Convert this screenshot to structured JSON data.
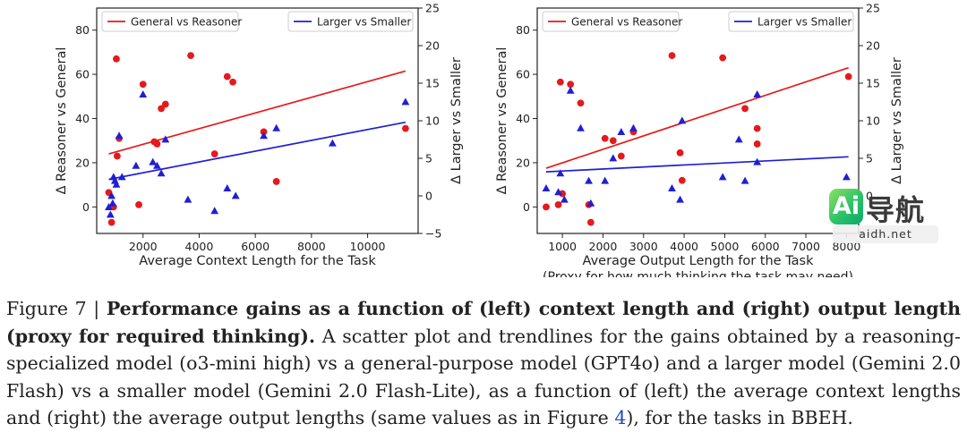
{
  "figure": {
    "label": "Figure 7 |",
    "title": "Performance gains as a function of (left) context length and (right) output length (proxy for required thinking).",
    "body_before_ref": " A scatter plot and trendlines for the gains obtained by a reasoning-specialized model (o3-mini high) vs a general-purpose model (GPT4o) and a larger model (Gemini 2.0 Flash) vs a smaller model (Gemini 2.0 Flash-Lite), as a function of (left) the average context lengths and (right) the average output lengths (same values as in Figure ",
    "ref": "4",
    "body_after_ref": "), for the tasks in BBEH."
  },
  "watermark": {
    "logo": "Ai",
    "name": "导航",
    "domain": "aidh.net"
  },
  "colors": {
    "red": "#e41a1c",
    "blue": "#1f1fd6",
    "axis": "#222222"
  },
  "chart_data": [
    {
      "type": "scatter",
      "title": "",
      "xlabel": "Average Context Length for the Task",
      "ylabel": "Δ Reasoner vs General",
      "y2label": "Δ Larger vs Smaller",
      "xlim": [
        350,
        11800
      ],
      "ylim": [
        -12,
        90
      ],
      "y2lim": [
        -5,
        25
      ],
      "xticks": [
        2000,
        4000,
        6000,
        8000,
        10000
      ],
      "yticks": [
        0,
        20,
        40,
        60,
        80
      ],
      "y2ticks": [
        -5,
        0,
        5,
        10,
        15,
        20,
        25
      ],
      "legend": {
        "red": "General vs Reasoner",
        "blue": "Larger vs Smaller",
        "red_position": "top-left",
        "blue_position": "top-right"
      },
      "series": [
        {
          "name": "General vs Reasoner",
          "axis": "left",
          "marker": "circle",
          "color": "red",
          "points": [
            [
              780,
              6.5
            ],
            [
              880,
              -7
            ],
            [
              950,
              0
            ],
            [
              1050,
              67
            ],
            [
              1080,
              23
            ],
            [
              1150,
              31
            ],
            [
              1850,
              1
            ],
            [
              2000,
              55.5
            ],
            [
              2400,
              29.5
            ],
            [
              2500,
              28.5
            ],
            [
              2650,
              44.5
            ],
            [
              2800,
              46.5
            ],
            [
              3700,
              68.5
            ],
            [
              4550,
              24
            ],
            [
              5000,
              59
            ],
            [
              5200,
              56.5
            ],
            [
              6300,
              34
            ],
            [
              6750,
              11.5
            ],
            [
              11350,
              35.5
            ]
          ],
          "trendline": [
            [
              780,
              24
            ],
            [
              11350,
              61.5
            ]
          ]
        },
        {
          "name": "Larger vs Smaller",
          "axis": "right",
          "marker": "triangle",
          "color": "blue",
          "points": [
            [
              780,
              -1.5
            ],
            [
              840,
              -2.5
            ],
            [
              880,
              0
            ],
            [
              920,
              -1
            ],
            [
              950,
              2.5
            ],
            [
              1000,
              2
            ],
            [
              1050,
              1.5
            ],
            [
              1150,
              8
            ],
            [
              1250,
              2.5
            ],
            [
              1750,
              4
            ],
            [
              2000,
              13.5
            ],
            [
              2350,
              4.5
            ],
            [
              2500,
              4
            ],
            [
              2650,
              3
            ],
            [
              2800,
              7.5
            ],
            [
              3600,
              -0.5
            ],
            [
              4550,
              -2
            ],
            [
              5000,
              1
            ],
            [
              5300,
              0
            ],
            [
              6300,
              8
            ],
            [
              6750,
              9
            ],
            [
              8750,
              7
            ],
            [
              11350,
              12.5
            ]
          ],
          "trendline": [
            [
              780,
              2.2
            ],
            [
              11350,
              9.8
            ]
          ]
        }
      ]
    },
    {
      "type": "scatter",
      "title": "",
      "xlabel": "Average Output Length for the Task",
      "xlabel2": "(Proxy for how much thinking the task may need)",
      "ylabel": "Δ Reasoner vs General",
      "y2label": "Δ Larger vs Smaller",
      "xlim": [
        380,
        8300
      ],
      "ylim": [
        -12,
        90
      ],
      "y2lim": [
        -5,
        25
      ],
      "xticks": [
        1000,
        2000,
        3000,
        4000,
        5000,
        6000,
        7000,
        8000
      ],
      "yticks": [
        0,
        20,
        40,
        60,
        80
      ],
      "y2ticks": [
        -5,
        0,
        5,
        10,
        15,
        20,
        25
      ],
      "legend": {
        "red": "General vs Reasoner",
        "blue": "Larger vs Smaller",
        "red_position": "top-left",
        "blue_position": "top-right"
      },
      "series": [
        {
          "name": "General vs Reasoner",
          "axis": "left",
          "marker": "circle",
          "color": "red",
          "points": [
            [
              600,
              0
            ],
            [
              900,
              1
            ],
            [
              950,
              56.5
            ],
            [
              1000,
              6
            ],
            [
              1200,
              55.5
            ],
            [
              1450,
              47
            ],
            [
              1650,
              1
            ],
            [
              1700,
              -7
            ],
            [
              2050,
              31
            ],
            [
              2250,
              30
            ],
            [
              2450,
              23
            ],
            [
              2750,
              34
            ],
            [
              3700,
              68.5
            ],
            [
              3900,
              24.5
            ],
            [
              3950,
              12
            ],
            [
              4950,
              67.5
            ],
            [
              5500,
              44.5
            ],
            [
              5800,
              35.5
            ],
            [
              5800,
              28.5
            ],
            [
              8050,
              59
            ]
          ],
          "trendline": [
            [
              600,
              17.5
            ],
            [
              8050,
              63
            ]
          ]
        },
        {
          "name": "Larger vs Smaller",
          "axis": "right",
          "marker": "triangle",
          "color": "blue",
          "points": [
            [
              600,
              1
            ],
            [
              900,
              0.5
            ],
            [
              950,
              3
            ],
            [
              1050,
              -0.5
            ],
            [
              1200,
              14
            ],
            [
              1450,
              9
            ],
            [
              1650,
              2
            ],
            [
              1700,
              -1
            ],
            [
              2050,
              2
            ],
            [
              2250,
              5
            ],
            [
              2450,
              8.5
            ],
            [
              2750,
              9
            ],
            [
              3700,
              1
            ],
            [
              3900,
              -0.5
            ],
            [
              3950,
              10
            ],
            [
              4950,
              2.5
            ],
            [
              5350,
              7.5
            ],
            [
              5500,
              2
            ],
            [
              5800,
              4.5
            ],
            [
              5800,
              13.5
            ],
            [
              8000,
              2.5
            ]
          ],
          "trendline": [
            [
              600,
              3.2
            ],
            [
              8050,
              5.2
            ]
          ]
        }
      ]
    }
  ]
}
